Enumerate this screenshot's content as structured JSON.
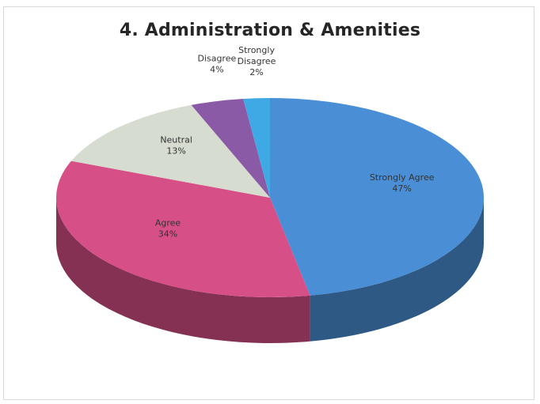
{
  "chart_data": {
    "type": "pie",
    "style": "3d",
    "title": "4. Administration & Amenities",
    "categories": [
      "Strongly Agree",
      "Agree",
      "Neutral",
      "Disagree",
      "Strongly Disagree"
    ],
    "values": [
      47,
      34,
      13,
      4,
      2
    ],
    "value_labels": [
      "47%",
      "34%",
      "13%",
      "4%",
      "2%"
    ],
    "colors": [
      "#4a8fd6",
      "#d64f86",
      "#d6dccf",
      "#8b5aa6",
      "#3fa9e6"
    ],
    "legend": "none",
    "label_position": "on-slice"
  }
}
